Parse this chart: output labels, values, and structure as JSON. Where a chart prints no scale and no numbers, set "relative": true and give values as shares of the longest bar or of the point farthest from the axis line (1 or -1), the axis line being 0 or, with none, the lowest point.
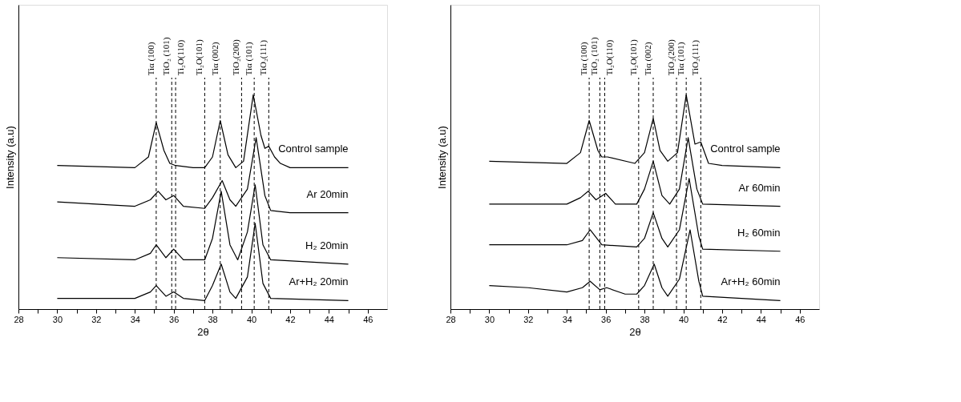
{
  "chart_data": [
    {
      "type": "line",
      "relative": true,
      "xlabel": "2θ",
      "ylabel": "Intensity (a.u)",
      "xlim": [
        28,
        47
      ],
      "xticks": [
        28,
        {
          "value": 29,
          "label": null
        },
        30,
        {
          "value": 31,
          "label": null
        },
        32,
        {
          "value": 33,
          "label": null
        },
        34,
        {
          "value": 35,
          "label": null
        },
        36,
        {
          "value": 37,
          "label": null
        },
        38,
        {
          "value": 39,
          "label": null
        },
        40,
        {
          "value": 41,
          "label": null
        },
        42,
        {
          "value": 43,
          "label": null
        },
        44,
        {
          "value": 45,
          "label": null
        },
        46
      ],
      "tick_labels": "x",
      "grid": false,
      "marker": "none",
      "line_style": "solid",
      "series": [
        {
          "name": "Control sample",
          "color": "#000000",
          "x": [
            30,
            34,
            34.7,
            35.1,
            35.5,
            35.8,
            36.1,
            37,
            37.6,
            38.0,
            38.4,
            38.8,
            39.2,
            39.6,
            40.1,
            40.5,
            40.7,
            40.9,
            41.2,
            41.5,
            42,
            45
          ],
          "values": [
            0.67,
            0.66,
            0.71,
            0.87,
            0.74,
            0.68,
            0.67,
            0.66,
            0.66,
            0.71,
            0.88,
            0.72,
            0.66,
            0.69,
            1,
            0.81,
            0.75,
            0.76,
            0.71,
            0.68,
            0.66,
            0.66
          ]
        },
        {
          "name": "Ar 20min",
          "color": "#000000",
          "x": [
            30,
            34,
            34.8,
            35.2,
            35.6,
            36,
            36.5,
            37.6,
            38.0,
            38.5,
            38.9,
            39.2,
            39.8,
            40.25,
            40.7,
            41,
            42,
            45
          ],
          "values": [
            0.5,
            0.48,
            0.51,
            0.55,
            0.51,
            0.53,
            0.48,
            0.47,
            0.52,
            0.6,
            0.51,
            0.48,
            0.56,
            0.8,
            0.53,
            0.46,
            0.45,
            0.45
          ]
        },
        {
          "name": "H₂ 20min",
          "color": "#000000",
          "x": [
            30,
            34,
            34.8,
            35.1,
            35.6,
            36,
            36.5,
            37.6,
            38.0,
            38.45,
            38.9,
            39.3,
            39.8,
            40.2,
            40.6,
            41,
            45
          ],
          "values": [
            0.24,
            0.23,
            0.26,
            0.3,
            0.24,
            0.28,
            0.23,
            0.23,
            0.33,
            0.55,
            0.3,
            0.23,
            0.36,
            0.58,
            0.3,
            0.23,
            0.21
          ]
        },
        {
          "name": "Ar+H₂ 20min",
          "color": "#000000",
          "x": [
            30,
            34,
            34.8,
            35.1,
            35.6,
            36,
            36.5,
            37.6,
            38.0,
            38.45,
            38.9,
            39.2,
            39.8,
            40.2,
            40.6,
            41,
            45
          ],
          "values": [
            0.05,
            0.05,
            0.08,
            0.11,
            0.06,
            0.08,
            0.05,
            0.04,
            0.11,
            0.21,
            0.08,
            0.05,
            0.15,
            0.4,
            0.12,
            0.05,
            0.04
          ]
        }
      ],
      "ref_lines": [
        {
          "axis": "x",
          "value": 35.1,
          "label": "Tiα (100)",
          "color": "#000000",
          "line_style": "dashed"
        },
        {
          "axis": "x",
          "value": 35.9,
          "label": "TiO₂ (101)",
          "color": "#000000",
          "line_style": "dashed"
        },
        {
          "axis": "x",
          "value": 36.1,
          "label": "Ti₂O(110)",
          "color": "#000000",
          "line_style": "dashed"
        },
        {
          "axis": "x",
          "value": 37.6,
          "label": "Ti₂O(101)",
          "color": "#000000",
          "line_style": "dashed"
        },
        {
          "axis": "x",
          "value": 38.4,
          "label": "Tiα (002)",
          "color": "#000000",
          "line_style": "dashed"
        },
        {
          "axis": "x",
          "value": 39.5,
          "label": "TiO₂(200)",
          "color": "#000000",
          "line_style": "dashed"
        },
        {
          "axis": "x",
          "value": 40.15,
          "label": "Tiα (101)",
          "color": "#000000",
          "line_style": "dashed"
        },
        {
          "axis": "x",
          "value": 40.9,
          "label": "TiO₂(111)",
          "color": "#000000",
          "line_style": "dashed"
        }
      ]
    },
    {
      "type": "line",
      "relative": true,
      "xlabel": "2θ",
      "ylabel": "Intensity (a.u)",
      "xlim": [
        28,
        47
      ],
      "xticks": [
        28,
        {
          "value": 29,
          "label": null
        },
        30,
        {
          "value": 31,
          "label": null
        },
        32,
        {
          "value": 33,
          "label": null
        },
        34,
        {
          "value": 35,
          "label": null
        },
        36,
        {
          "value": 37,
          "label": null
        },
        38,
        {
          "value": 39,
          "label": null
        },
        40,
        {
          "value": 41,
          "label": null
        },
        42,
        {
          "value": 43,
          "label": null
        },
        44,
        {
          "value": 45,
          "label": null
        },
        46
      ],
      "tick_labels": "x",
      "grid": false,
      "marker": "none",
      "line_style": "solid",
      "series": [
        {
          "name": "Control sample",
          "color": "#000000",
          "x": [
            30,
            34,
            34.7,
            35.15,
            35.6,
            35.8,
            36.1,
            37.5,
            38.0,
            38.45,
            38.8,
            39.2,
            39.7,
            40.15,
            40.6,
            40.9,
            41.3,
            42,
            45
          ],
          "values": [
            0.69,
            0.68,
            0.73,
            0.88,
            0.74,
            0.71,
            0.71,
            0.68,
            0.73,
            0.89,
            0.74,
            0.69,
            0.73,
            1,
            0.77,
            0.78,
            0.68,
            0.67,
            0.66
          ]
        },
        {
          "name": "Ar 60min",
          "color": "#000000",
          "x": [
            30,
            34,
            34.7,
            35.1,
            35.5,
            36,
            36.5,
            37.6,
            38.0,
            38.45,
            38.9,
            39.3,
            39.8,
            40.25,
            40.7,
            41,
            45
          ],
          "values": [
            0.49,
            0.49,
            0.52,
            0.55,
            0.51,
            0.54,
            0.49,
            0.49,
            0.56,
            0.69,
            0.53,
            0.49,
            0.56,
            0.8,
            0.56,
            0.49,
            0.48
          ]
        },
        {
          "name": "H₂ 60min",
          "color": "#000000",
          "x": [
            30,
            34,
            34.8,
            35.2,
            35.8,
            37.6,
            38.0,
            38.45,
            38.9,
            39.2,
            39.8,
            40.3,
            40.8,
            41,
            45
          ],
          "values": [
            0.3,
            0.3,
            0.32,
            0.37,
            0.3,
            0.29,
            0.33,
            0.45,
            0.33,
            0.29,
            0.37,
            0.61,
            0.34,
            0.28,
            0.27
          ]
        },
        {
          "name": "Ar+H₂ 60min",
          "color": "#000000",
          "x": [
            30,
            32,
            34,
            34.8,
            35.2,
            35.7,
            36.05,
            37,
            37.6,
            38.0,
            38.5,
            38.9,
            39.2,
            39.8,
            40.35,
            40.8,
            41,
            45
          ],
          "values": [
            0.11,
            0.1,
            0.08,
            0.1,
            0.13,
            0.09,
            0.1,
            0.07,
            0.07,
            0.11,
            0.21,
            0.1,
            0.06,
            0.14,
            0.37,
            0.13,
            0.06,
            0.04
          ]
        }
      ],
      "ref_lines": [
        {
          "axis": "x",
          "value": 35.15,
          "label": "Tiα (100)",
          "color": "#000000",
          "line_style": "dashed"
        },
        {
          "axis": "x",
          "value": 35.7,
          "label": "TiO₂ (101)",
          "color": "#000000",
          "line_style": "dashed"
        },
        {
          "axis": "x",
          "value": 35.95,
          "label": "Ti₂O(110)",
          "color": "#000000",
          "line_style": "dashed"
        },
        {
          "axis": "x",
          "value": 37.7,
          "label": "Ti₂O(101)",
          "color": "#000000",
          "line_style": "dashed"
        },
        {
          "axis": "x",
          "value": 38.45,
          "label": "Tiα (002)",
          "color": "#000000",
          "line_style": "dashed"
        },
        {
          "axis": "x",
          "value": 39.65,
          "label": "TiO₂(200)",
          "color": "#000000",
          "line_style": "dashed"
        },
        {
          "axis": "x",
          "value": 40.15,
          "label": "Tiα (101)",
          "color": "#000000",
          "line_style": "dashed"
        },
        {
          "axis": "x",
          "value": 40.9,
          "label": "TiO₂(111)",
          "color": "#000000",
          "line_style": "dashed"
        }
      ]
    }
  ]
}
